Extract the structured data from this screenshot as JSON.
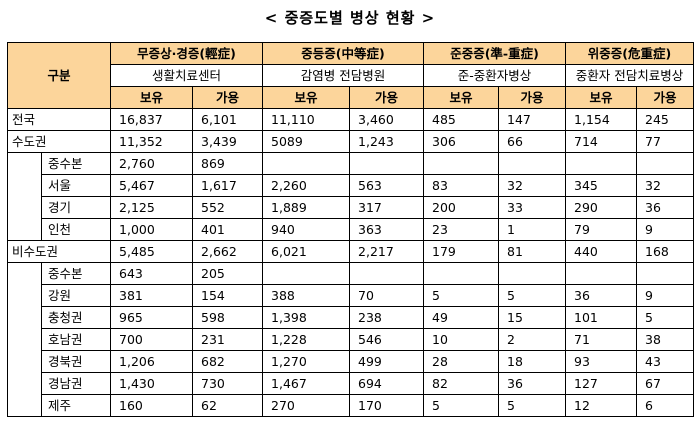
{
  "title": "< 중증도별 병상 현황 >",
  "header": {
    "group_label": "구분",
    "categories": [
      {
        "name": "무증상·경증(輕症)",
        "facility": "생활치료센터"
      },
      {
        "name": "중등증(中等症)",
        "facility": "감염병 전담병원"
      },
      {
        "name": "준중증(準-重症)",
        "facility": "준-중환자병상"
      },
      {
        "name": "위중증(危重症)",
        "facility": "중환자 전담치료병상"
      }
    ],
    "held": "보유",
    "available": "가용"
  },
  "rows": [
    {
      "label": "전국",
      "level": 0,
      "vals": [
        "16,837",
        "6,101",
        "11,110",
        "3,460",
        "485",
        "147",
        "1,154",
        "245"
      ]
    },
    {
      "label": "수도권",
      "level": 0,
      "vals": [
        "11,352",
        "3,439",
        "5089",
        "1,243",
        "306",
        "66",
        "714",
        "77"
      ]
    },
    {
      "label": "중수본",
      "level": 1,
      "vals": [
        "2,760",
        "869",
        "",
        "",
        "",
        "",
        "",
        ""
      ]
    },
    {
      "label": "서울",
      "level": 1,
      "vals": [
        "5,467",
        "1,617",
        "2,260",
        "563",
        "83",
        "32",
        "345",
        "32"
      ]
    },
    {
      "label": "경기",
      "level": 1,
      "vals": [
        "2,125",
        "552",
        "1,889",
        "317",
        "200",
        "33",
        "290",
        "36"
      ]
    },
    {
      "label": "인천",
      "level": 1,
      "vals": [
        "1,000",
        "401",
        "940",
        "363",
        "23",
        "1",
        "79",
        "9"
      ]
    },
    {
      "label": "비수도권",
      "level": 0,
      "vals": [
        "5,485",
        "2,662",
        "6,021",
        "2,217",
        "179",
        "81",
        "440",
        "168"
      ]
    },
    {
      "label": "중수본",
      "level": 1,
      "vals": [
        "643",
        "205",
        "",
        "",
        "",
        "",
        "",
        ""
      ]
    },
    {
      "label": "강원",
      "level": 1,
      "vals": [
        "381",
        "154",
        "388",
        "70",
        "5",
        "5",
        "36",
        "9"
      ]
    },
    {
      "label": "충청권",
      "level": 1,
      "vals": [
        "965",
        "598",
        "1,398",
        "238",
        "49",
        "15",
        "101",
        "5"
      ]
    },
    {
      "label": "호남권",
      "level": 1,
      "vals": [
        "700",
        "231",
        "1,228",
        "546",
        "10",
        "2",
        "71",
        "38"
      ]
    },
    {
      "label": "경북권",
      "level": 1,
      "vals": [
        "1,206",
        "682",
        "1,270",
        "499",
        "28",
        "18",
        "93",
        "43"
      ]
    },
    {
      "label": "경남권",
      "level": 1,
      "vals": [
        "1,430",
        "730",
        "1,467",
        "694",
        "82",
        "36",
        "127",
        "67"
      ]
    },
    {
      "label": "제주",
      "level": 1,
      "vals": [
        "160",
        "62",
        "270",
        "170",
        "5",
        "5",
        "12",
        "6"
      ]
    }
  ]
}
